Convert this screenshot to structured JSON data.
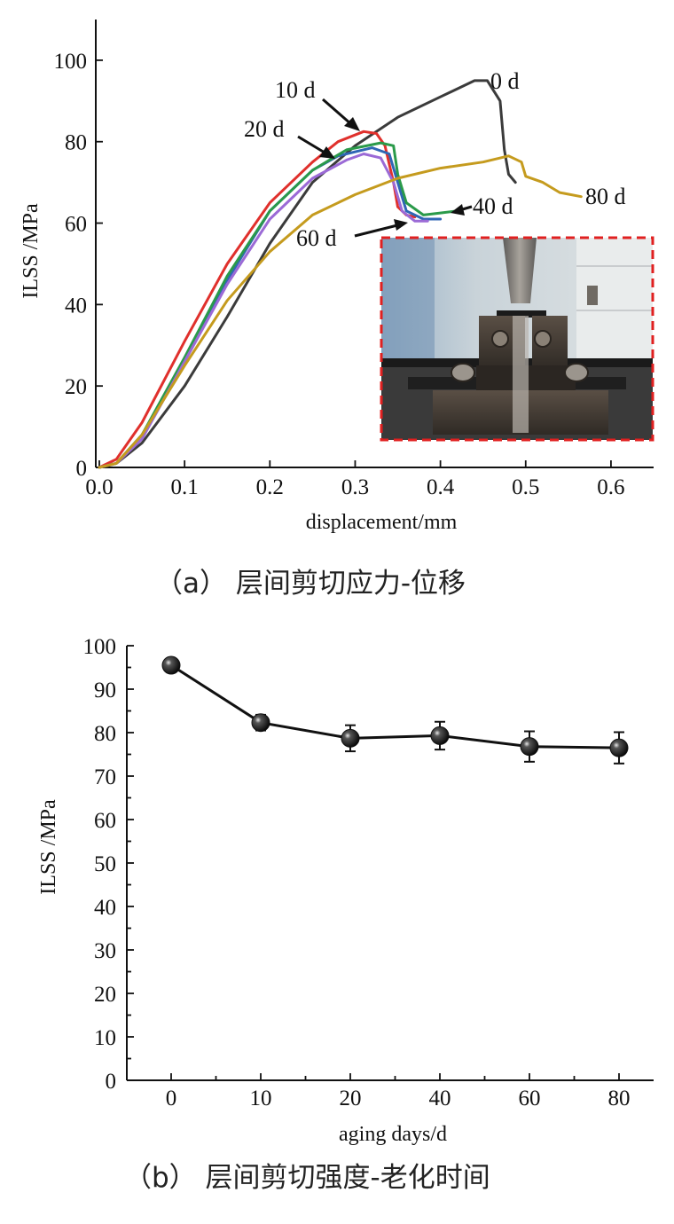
{
  "colors": {
    "0 d": "#3b3b3b",
    "10 d": "#e0302c",
    "20 d": "#2f66b5",
    "40 d": "#2a9a4a",
    "60 d": "#9b6ad6",
    "80 d": "#c59b1e",
    "inset_border": "#e02020",
    "marker": "#111111"
  },
  "chart_data": [
    {
      "type": "line",
      "caption": "（a）  层间剪切应力-位移",
      "xlabel": "displacement/mm",
      "ylabel": "ILSS /MPa",
      "xlim": [
        0.0,
        0.65
      ],
      "ylim": [
        0,
        110
      ],
      "x_ticks": [
        "0.0",
        "0.1",
        "0.2",
        "0.3",
        "0.4",
        "0.5",
        "0.6"
      ],
      "y_ticks": [
        "0",
        "20",
        "40",
        "60",
        "80",
        "100"
      ],
      "inset": "photo-of-short-beam-shear-test-fixture",
      "series": [
        {
          "name": "0 d",
          "points": [
            [
              0.0,
              0
            ],
            [
              0.02,
              1
            ],
            [
              0.05,
              6
            ],
            [
              0.1,
              20
            ],
            [
              0.15,
              37
            ],
            [
              0.2,
              55
            ],
            [
              0.25,
              70
            ],
            [
              0.3,
              79
            ],
            [
              0.35,
              86
            ],
            [
              0.4,
              91
            ],
            [
              0.44,
              95
            ],
            [
              0.455,
              95
            ],
            [
              0.47,
              90
            ],
            [
              0.475,
              78
            ],
            [
              0.48,
              72
            ],
            [
              0.488,
              70
            ]
          ]
        },
        {
          "name": "10 d",
          "points": [
            [
              0.0,
              0
            ],
            [
              0.02,
              2
            ],
            [
              0.05,
              11
            ],
            [
              0.1,
              31
            ],
            [
              0.15,
              50
            ],
            [
              0.2,
              65
            ],
            [
              0.25,
              75
            ],
            [
              0.28,
              80
            ],
            [
              0.31,
              82.5
            ],
            [
              0.325,
              82
            ],
            [
              0.335,
              79
            ],
            [
              0.345,
              70
            ],
            [
              0.35,
              64
            ],
            [
              0.36,
              62
            ],
            [
              0.37,
              61.5
            ]
          ]
        },
        {
          "name": "20 d",
          "points": [
            [
              0.0,
              0
            ],
            [
              0.02,
              1
            ],
            [
              0.05,
              8
            ],
            [
              0.1,
              26
            ],
            [
              0.15,
              46
            ],
            [
              0.2,
              63
            ],
            [
              0.25,
              73
            ],
            [
              0.28,
              76.5
            ],
            [
              0.32,
              78.5
            ],
            [
              0.34,
              77
            ],
            [
              0.35,
              70
            ],
            [
              0.36,
              63
            ],
            [
              0.38,
              61
            ],
            [
              0.4,
              61
            ]
          ]
        },
        {
          "name": "40 d",
          "points": [
            [
              0.0,
              0
            ],
            [
              0.02,
              1
            ],
            [
              0.05,
              8
            ],
            [
              0.1,
              27
            ],
            [
              0.15,
              47
            ],
            [
              0.2,
              63
            ],
            [
              0.25,
              73
            ],
            [
              0.29,
              78
            ],
            [
              0.33,
              79.7
            ],
            [
              0.345,
              79
            ],
            [
              0.35,
              72
            ],
            [
              0.36,
              65
            ],
            [
              0.38,
              62
            ],
            [
              0.4,
              62.5
            ],
            [
              0.42,
              63
            ]
          ]
        },
        {
          "name": "60 d",
          "points": [
            [
              0.0,
              0
            ],
            [
              0.02,
              1
            ],
            [
              0.05,
              7
            ],
            [
              0.1,
              26
            ],
            [
              0.15,
              45
            ],
            [
              0.2,
              61
            ],
            [
              0.25,
              71
            ],
            [
              0.29,
              75.5
            ],
            [
              0.31,
              77
            ],
            [
              0.33,
              76
            ],
            [
              0.345,
              70
            ],
            [
              0.355,
              63
            ],
            [
              0.37,
              60.5
            ],
            [
              0.385,
              60.5
            ]
          ]
        },
        {
          "name": "80 d",
          "points": [
            [
              0.0,
              0
            ],
            [
              0.02,
              1
            ],
            [
              0.05,
              8
            ],
            [
              0.1,
              25
            ],
            [
              0.15,
              41
            ],
            [
              0.2,
              53
            ],
            [
              0.25,
              62
            ],
            [
              0.3,
              67
            ],
            [
              0.35,
              71
            ],
            [
              0.4,
              73.5
            ],
            [
              0.45,
              75
            ],
            [
              0.48,
              76.5
            ],
            [
              0.495,
              75
            ],
            [
              0.5,
              71.5
            ],
            [
              0.52,
              70
            ],
            [
              0.54,
              67.5
            ],
            [
              0.565,
              66.5
            ]
          ]
        }
      ]
    },
    {
      "type": "line",
      "caption": "（b）  层间剪切强度-老化时间",
      "xlabel": "aging days/d",
      "ylabel": "ILSS /MPa",
      "categories": [
        "0",
        "10",
        "20",
        "40",
        "60",
        "80"
      ],
      "values": [
        95.5,
        82.3,
        78.7,
        79.3,
        76.8,
        76.5
      ],
      "errors": [
        1.2,
        1.8,
        3.0,
        3.2,
        3.5,
        3.6
      ],
      "ylim": [
        0,
        100
      ],
      "y_ticks": [
        "0",
        "10",
        "20",
        "30",
        "40",
        "50",
        "60",
        "70",
        "80",
        "90",
        "100"
      ]
    }
  ]
}
